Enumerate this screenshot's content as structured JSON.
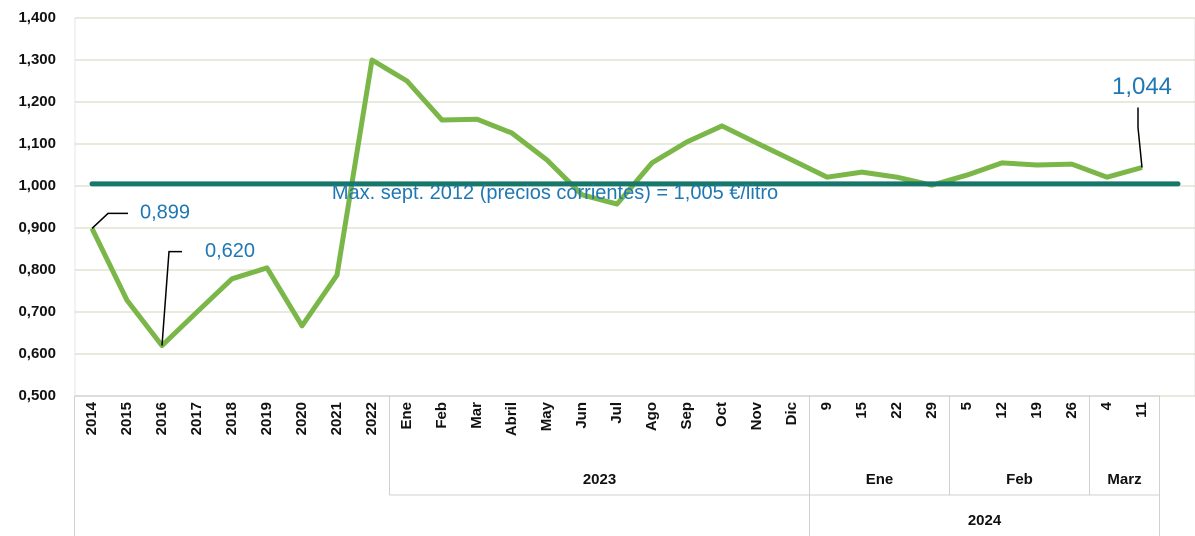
{
  "chart_data": {
    "type": "line",
    "categories": [
      "2014",
      "2015",
      "2016",
      "2017",
      "2018",
      "2019",
      "2020",
      "2021",
      "2022",
      "Ene",
      "Feb",
      "Mar",
      "Abril",
      "May",
      "Jun",
      "Jul",
      "Ago",
      "Sep",
      "Oct",
      "Nov",
      "Dic",
      "9",
      "15",
      "22",
      "29",
      "5",
      "12",
      "19",
      "26",
      "4",
      "11"
    ],
    "categories_level2": [
      null,
      null,
      null,
      null,
      null,
      null,
      null,
      null,
      null,
      "2023",
      "2023",
      "2023",
      "2023",
      "2023",
      "2023",
      "2023",
      "2023",
      "2023",
      "2023",
      "2023",
      "2023",
      "Ene",
      "Ene",
      "Ene",
      "Ene",
      "Feb",
      "Feb",
      "Feb",
      "Feb",
      "Marz",
      "Marz"
    ],
    "categories_level3": [
      null,
      null,
      null,
      null,
      null,
      null,
      null,
      null,
      null,
      null,
      null,
      null,
      null,
      null,
      null,
      null,
      null,
      null,
      null,
      null,
      null,
      "2024",
      "2024",
      "2024",
      "2024",
      "2024",
      "2024",
      "2024",
      "2024",
      "2024",
      "2024"
    ],
    "series": [
      {
        "name": null,
        "color": "#7ab648",
        "values": [
          0.899,
          0.728,
          0.62,
          0.7,
          0.779,
          0.805,
          0.667,
          0.788,
          1.3,
          1.25,
          1.157,
          1.159,
          1.126,
          1.062,
          0.979,
          0.957,
          1.055,
          1.105,
          1.143,
          1.102,
          1.062,
          1.021,
          1.033,
          1.021,
          1.002,
          1.026,
          1.055,
          1.05,
          1.052,
          1.021,
          1.044
        ],
        "value_labels": [
          "0,899",
          null,
          "0,620",
          null,
          null,
          null,
          null,
          null,
          null,
          null,
          null,
          null,
          null,
          null,
          null,
          null,
          null,
          null,
          null,
          null,
          null,
          null,
          null,
          null,
          null,
          null,
          null,
          null,
          null,
          null,
          "1,044"
        ]
      }
    ],
    "reference": {
      "value": 1.005,
      "label": "Máx. sept. 2012 (precios corrientes) = 1,005 €/litro",
      "color": "#17776b"
    },
    "ylim": [
      0.5,
      1.4
    ],
    "yticks": [
      {
        "value": 0.5,
        "label": "0,500"
      },
      {
        "value": 0.6,
        "label": "0,600"
      },
      {
        "value": 0.7,
        "label": "0,700"
      },
      {
        "value": 0.8,
        "label": "0,800"
      },
      {
        "value": 0.9,
        "label": "0,900"
      },
      {
        "value": 1.0,
        "label": "1,000"
      },
      {
        "value": 1.1,
        "label": "1,100"
      },
      {
        "value": 1.2,
        "label": "1,200"
      },
      {
        "value": 1.3,
        "label": "1,300"
      },
      {
        "value": 1.4,
        "label": "1,400"
      }
    ],
    "grid": true
  }
}
